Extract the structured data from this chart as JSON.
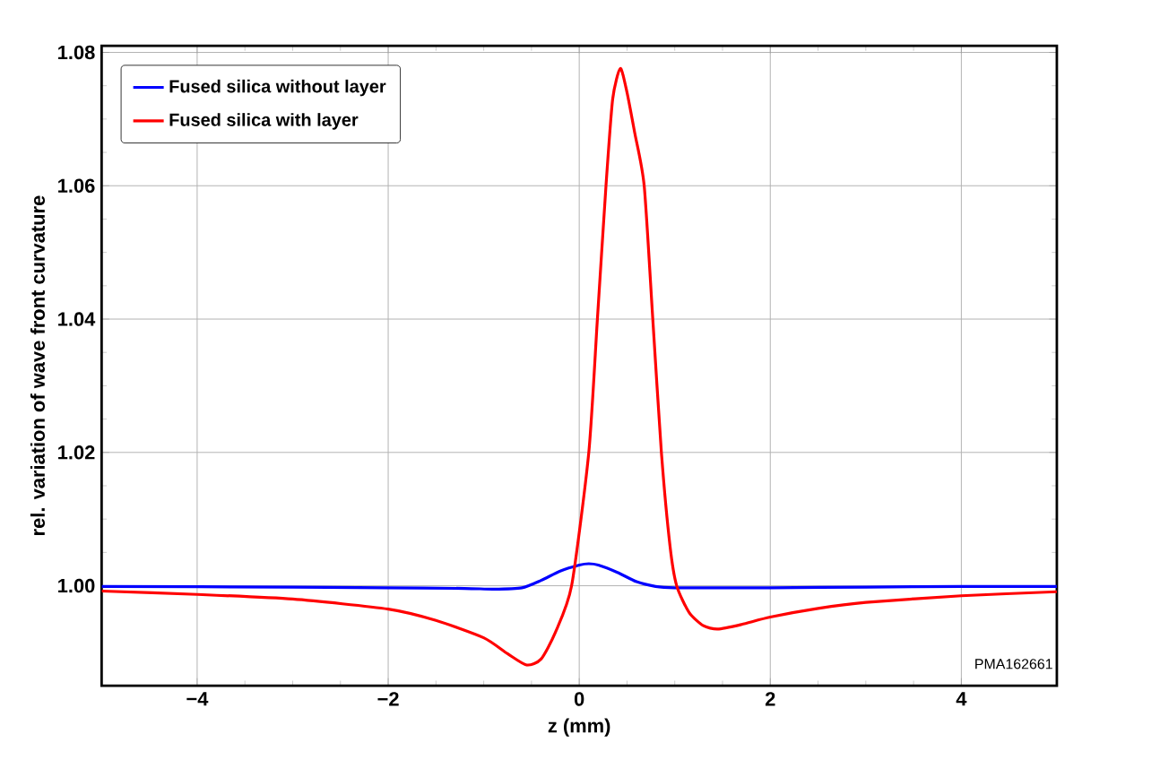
{
  "chart_data": {
    "type": "line",
    "xlabel": "z (mm)",
    "ylabel": "rel. variation of wave front curvature",
    "xlim": [
      -5,
      5
    ],
    "ylim": [
      0.985,
      1.081
    ],
    "xticks": [
      {
        "value": -4,
        "label": "−4"
      },
      {
        "value": -2,
        "label": "−2"
      },
      0,
      2,
      4
    ],
    "yticks": [
      {
        "value": 1.0,
        "label": "1.00"
      },
      1.02,
      1.04,
      1.06,
      1.08
    ],
    "grid": true,
    "legend": "top left",
    "marker": "none",
    "line_style": "solid",
    "annotations": [
      "PMA162661"
    ],
    "series": [
      {
        "name": "Fused silica without layer",
        "color": "#0000ff",
        "x": [
          -5,
          -3,
          -2,
          -1.2,
          -0.9,
          -0.6,
          -0.4,
          -0.2,
          0,
          0.1,
          0.2,
          0.4,
          0.6,
          0.8,
          1.0,
          1.5,
          2,
          3,
          4,
          5
        ],
        "values": [
          0.9999,
          0.9998,
          0.9997,
          0.9996,
          0.9995,
          0.9997,
          1.0008,
          1.0022,
          1.0031,
          1.0033,
          1.0031,
          1.002,
          1.0006,
          0.9999,
          0.9997,
          0.9997,
          0.9997,
          0.9998,
          0.9999,
          0.9999
        ]
      },
      {
        "name": "Fused silica with layer",
        "color": "#ff0000",
        "x": [
          -5,
          -4,
          -3,
          -2,
          -1.5,
          -1,
          -0.75,
          -0.55,
          -0.4,
          -0.25,
          -0.08,
          0.1,
          0.19,
          0.28,
          0.35,
          0.43,
          0.5,
          0.58,
          0.68,
          0.77,
          0.86,
          0.95,
          1.02,
          1.15,
          1.3,
          1.45,
          1.7,
          2,
          2.5,
          3,
          4,
          5
        ],
        "values": [
          0.9992,
          0.9987,
          0.998,
          0.9965,
          0.9948,
          0.9922,
          0.9898,
          0.9881,
          0.989,
          0.993,
          1.0,
          1.02,
          1.04,
          1.06,
          1.073,
          1.0776,
          1.074,
          1.068,
          1.06,
          1.04,
          1.02,
          1.006,
          1.0,
          0.996,
          0.994,
          0.9935,
          0.9942,
          0.9953,
          0.9966,
          0.9975,
          0.9985,
          0.9991
        ]
      }
    ]
  }
}
